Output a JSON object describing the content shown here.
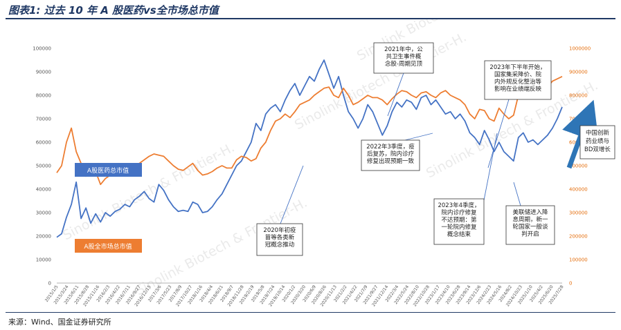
{
  "title": "图表1: 过去 10 年 A 股医药vs全市场总市值",
  "source": "来源：Wind、国金证券研究所",
  "watermark": "Sinolink Biotech & Frontier-H.",
  "colors": {
    "pharma": "#4472c4",
    "market": "#ed7d31",
    "title": "#1f3864"
  },
  "annotations": [
    {
      "id": "2021-mid",
      "lines": [
        "2021年中，公",
        "共卫生事件概",
        "念股-周期见顶"
      ]
    },
    {
      "id": "2023-h2",
      "lines": [
        "2023年下半年开始，",
        "国家集采降价、院",
        "内外规反化整治等",
        "影响在业绩端反映"
      ]
    },
    {
      "id": "2022-q3",
      "lines": [
        "2022年3季度，疫",
        "后复苏，院内诊疗",
        "修复出现预期一致"
      ]
    },
    {
      "id": "2023-q4",
      "lines": [
        "2023年4季度，",
        "院内诊疗修复",
        "不达预期：第",
        "一轮院内修复",
        "概念结束"
      ]
    },
    {
      "id": "2020-vaccine",
      "lines": [
        "2020年初疫",
        "苗等各类新",
        "冠概念推动"
      ]
    },
    {
      "id": "fed-cut",
      "lines": [
        "美联储进入降",
        "息周期，新一",
        "轮国家一般谈",
        "判开启"
      ]
    }
  ],
  "callouts": {
    "bd": [
      "中国创新",
      "药业绩与",
      "BD双增长"
    ]
  },
  "chart_data": {
    "type": "line",
    "title": "",
    "xlabel": "",
    "ylabel": "",
    "x_ticks": [
      "2015/1/5",
      "2015/3/24",
      "2015/6/11",
      "2015/8/28",
      "2015/11/16",
      "2016/2/3",
      "2016/4/22",
      "2016/7/11",
      "2016/9/27",
      "2016/12/15",
      "2017/3/6",
      "2017/5/23",
      "2017/8/9",
      "2017/10/27",
      "2018/1/16",
      "2018/4/4",
      "2018/6/21",
      "2018/9/7",
      "2018/11/28",
      "2019/2/19",
      "2019/5/8",
      "2019/7/24",
      "2019/10/14",
      "2020/1/2",
      "2020/3/20",
      "2020/6/9",
      "2020/8/26",
      "2020/11/13",
      "2021/2/2",
      "2021/4/22",
      "2021/7/9",
      "2021/9/27",
      "2021/12/14",
      "2022/3/4",
      "2022/5/24",
      "2022/8/10",
      "2022/10/28",
      "2023/1/17",
      "2023/4/10",
      "2023/6/28",
      "2023/9/14",
      "2023/12/6",
      "2024/2/23",
      "2024/5/16",
      "2024/8/2",
      "2024/10/23",
      "2025/1/10",
      "2025/4/2",
      "2025/6/20",
      "2025/7/28"
    ],
    "y_left": {
      "min": 0,
      "max": 100000,
      "ticks": [
        0,
        10000,
        20000,
        30000,
        40000,
        50000,
        60000,
        70000,
        80000,
        90000,
        100000
      ]
    },
    "y_right": {
      "min": 0,
      "max": 1000000,
      "ticks": [
        0,
        100000,
        200000,
        300000,
        400000,
        500000,
        600000,
        700000,
        800000,
        900000,
        1000000
      ]
    },
    "series": [
      {
        "name": "A股医药总市值",
        "axis": "left",
        "values": [
          19500,
          21000,
          28000,
          33500,
          43000,
          27500,
          32000,
          25500,
          29500,
          26000,
          30000,
          28500,
          30500,
          31500,
          33500,
          32500,
          35500,
          37000,
          39000,
          36000,
          34500,
          42000,
          39500,
          35500,
          32500,
          30500,
          31000,
          30500,
          34500,
          33500,
          30000,
          30500,
          32500,
          35500,
          38000,
          42000,
          46000,
          50000,
          52000,
          56000,
          60000,
          68000,
          65000,
          72000,
          74500,
          76000,
          73000,
          78000,
          82000,
          85000,
          80000,
          84000,
          88000,
          86000,
          91000,
          95000,
          89000,
          83000,
          88000,
          80000,
          73000,
          70000,
          66000,
          70000,
          76000,
          73000,
          68000,
          63000,
          67000,
          73000,
          77000,
          75000,
          78000,
          77000,
          74000,
          79000,
          80000,
          76000,
          78000,
          75000,
          72000,
          73000,
          70000,
          72000,
          69000,
          64000,
          62000,
          59000,
          65000,
          61000,
          56000,
          60000,
          56000,
          54000,
          52000,
          62000,
          64000,
          60000,
          61000,
          59000,
          61000,
          63000,
          66000,
          70000,
          75000
        ]
      },
      {
        "name": "A股全市场总市值",
        "axis": "right",
        "values": [
          470000,
          500000,
          600000,
          660000,
          560000,
          510000,
          455000,
          485000,
          475000,
          420000,
          445000,
          460000,
          470000,
          460000,
          485000,
          500000,
          505000,
          510000,
          525000,
          540000,
          550000,
          545000,
          540000,
          520000,
          500000,
          485000,
          480000,
          495000,
          510000,
          480000,
          460000,
          465000,
          475000,
          490000,
          500000,
          490000,
          490000,
          525000,
          540000,
          535000,
          520000,
          530000,
          575000,
          600000,
          650000,
          690000,
          700000,
          720000,
          705000,
          730000,
          760000,
          770000,
          780000,
          800000,
          815000,
          830000,
          835000,
          800000,
          790000,
          830000,
          800000,
          760000,
          770000,
          785000,
          800000,
          790000,
          790000,
          780000,
          760000,
          785000,
          805000,
          820000,
          815000,
          800000,
          790000,
          810000,
          815000,
          800000,
          790000,
          810000,
          820000,
          800000,
          790000,
          780000,
          760000,
          720000,
          700000,
          740000,
          735000,
          700000,
          690000,
          745000,
          720000,
          700000,
          715000,
          800000,
          820000,
          810000,
          825000,
          830000,
          845000,
          835000,
          860000,
          870000,
          880000
        ]
      }
    ],
    "legend": [
      {
        "series": "A股医药总市值",
        "position": "left-middle"
      },
      {
        "series": "A股全市场总市值",
        "position": "left-bottom"
      }
    ],
    "grid": false
  }
}
